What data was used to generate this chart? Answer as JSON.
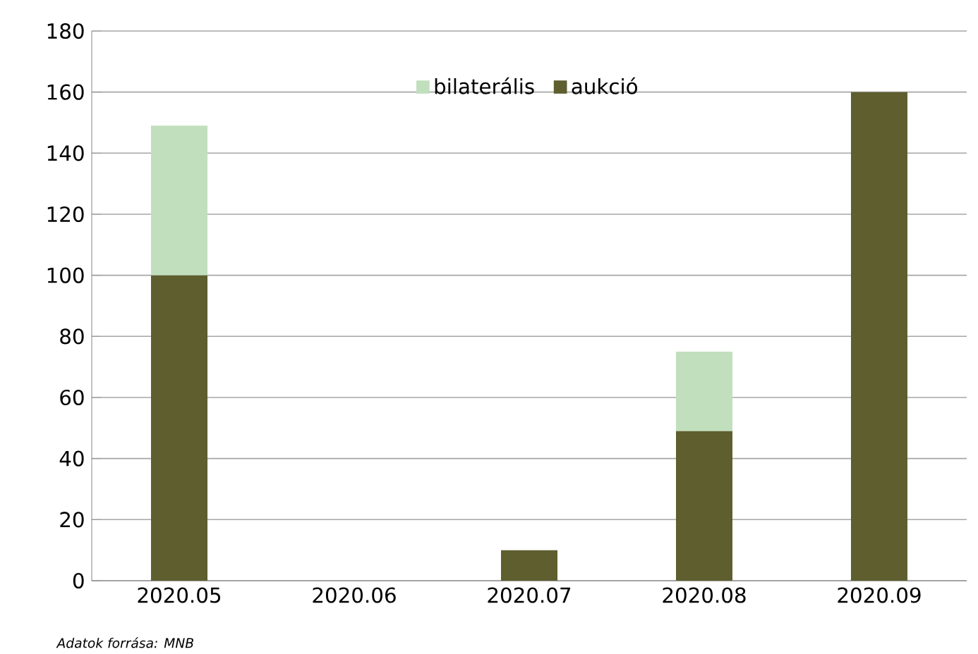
{
  "chart_data": {
    "type": "bar",
    "stacked": true,
    "categories": [
      "2020.05",
      "2020.06",
      "2020.07",
      "2020.08",
      "2020.09"
    ],
    "series": [
      {
        "name": "aukció",
        "color": "#5e5e2f",
        "values": [
          100,
          0,
          10,
          49,
          160
        ]
      },
      {
        "name": "bilaterális",
        "color": "#c1dfbd",
        "values": [
          49,
          0,
          0,
          26,
          0
        ]
      }
    ],
    "ylim": [
      0,
      180
    ],
    "yticks": [
      0,
      20,
      40,
      60,
      80,
      100,
      120,
      140,
      160,
      180
    ],
    "grid": "y",
    "legend": "top",
    "annotations": [
      "*Adatok forrása: MNB*"
    ]
  }
}
